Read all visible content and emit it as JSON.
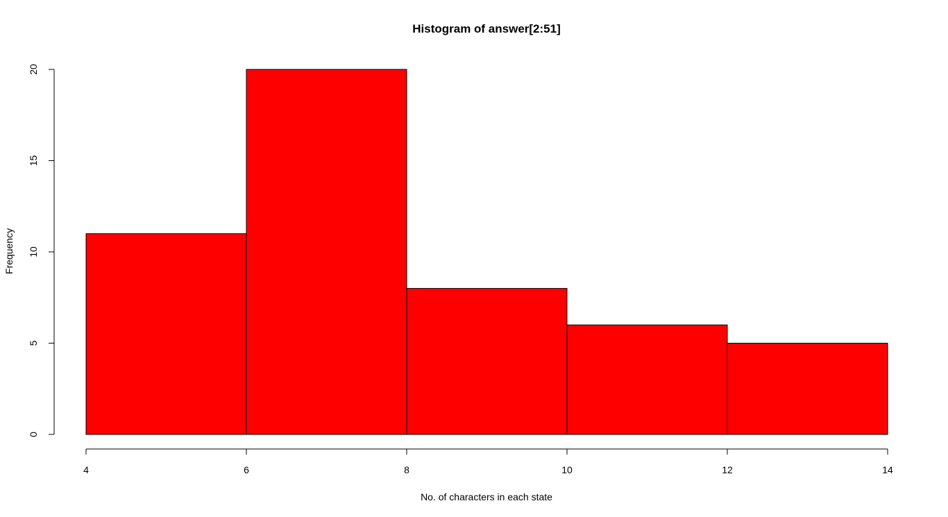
{
  "chart_data": {
    "type": "bar",
    "title": "Histogram of answer[2:51]",
    "xlabel": "No. of characters in each state",
    "ylabel": "Frequency",
    "bins": [
      {
        "x0": 4,
        "x1": 6,
        "value": 11
      },
      {
        "x0": 6,
        "x1": 8,
        "value": 20
      },
      {
        "x0": 8,
        "x1": 10,
        "value": 8
      },
      {
        "x0": 10,
        "x1": 12,
        "value": 6
      },
      {
        "x0": 12,
        "x1": 14,
        "value": 5
      }
    ],
    "xlim": [
      4,
      14
    ],
    "ylim": [
      0,
      20
    ],
    "xticks": [
      4,
      6,
      8,
      10,
      12,
      14
    ],
    "yticks": [
      0,
      5,
      10,
      15,
      20
    ],
    "grid": false,
    "colors": {
      "bar_fill": "#ff0000",
      "bar_stroke": "#000000",
      "axis": "#000000"
    }
  }
}
